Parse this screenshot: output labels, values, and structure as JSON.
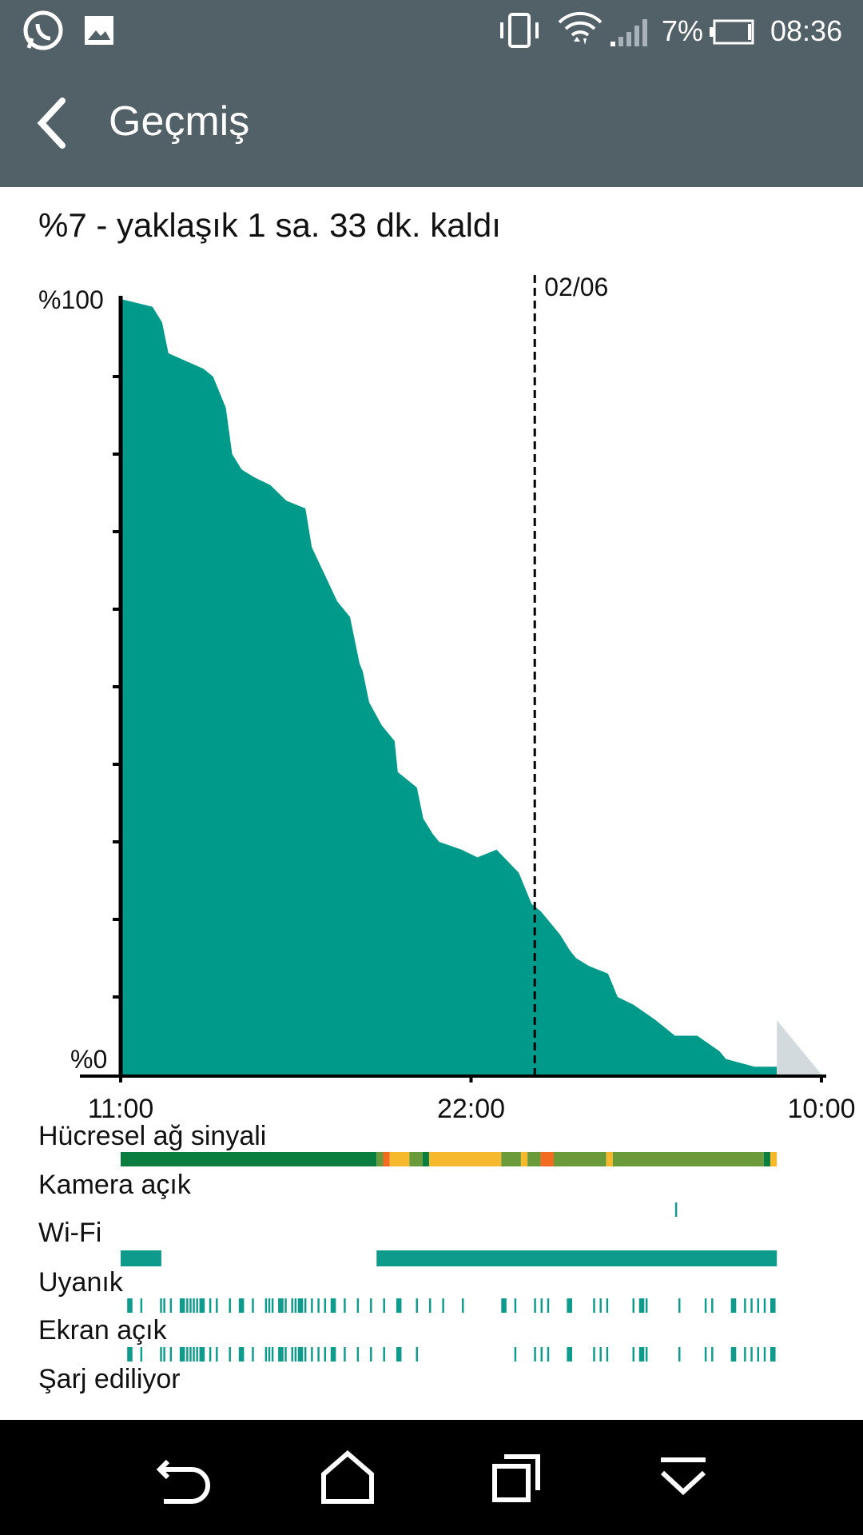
{
  "status_bar": {
    "battery_percent": "7%",
    "time": "08:36",
    "icons": [
      "whatsapp-icon",
      "gallery-icon",
      "vibrate-icon",
      "wifi-icon",
      "cell-signal-icon",
      "battery-icon"
    ]
  },
  "app_bar": {
    "title": "Geçmiş",
    "back_icon": "chevron-left-icon"
  },
  "summary": "%7 - yaklaşık 1 sa. 33 dk. kaldı",
  "chart_data": {
    "type": "area",
    "y_labels": [
      "%100",
      "%0"
    ],
    "x_labels": [
      "11:00",
      "22:00",
      "10:00"
    ],
    "date_marker": "02/06",
    "ylim": [
      0,
      100
    ],
    "xlim": [
      0,
      22
    ],
    "x_hours": [
      0,
      1.0,
      1.3,
      1.5,
      2.6,
      2.9,
      3.3,
      3.5,
      3.8,
      4.2,
      4.7,
      5.2,
      5.8,
      6.0,
      6.8,
      7.2,
      7.5,
      7.6,
      7.8,
      8.2,
      8.6,
      8.7,
      9.0,
      9.3,
      9.5,
      9.8,
      10.0,
      10.7,
      11.2,
      11.8,
      12.5,
      12.9,
      13.2,
      13.8,
      14.1,
      14.3,
      14.7,
      15.3,
      15.5,
      15.6,
      16.1,
      16.8,
      17.1,
      17.4,
      18.1,
      18.8,
      19.0,
      19.9,
      20.6,
      21.0,
      21.6,
      21.8,
      22.0
    ],
    "battery": [
      100,
      99,
      97,
      93,
      91,
      90,
      86,
      80,
      78,
      77,
      76,
      74,
      73,
      68,
      61,
      59,
      53,
      52,
      48,
      45,
      43,
      39,
      38,
      37,
      33,
      31,
      30,
      29,
      28,
      29,
      26,
      22,
      21,
      18,
      16,
      15,
      14,
      13,
      11,
      10,
      9,
      7,
      6,
      5,
      5,
      3,
      2,
      1,
      1,
      0,
      0,
      0,
      0
    ],
    "predicted": {
      "from_percent": 7,
      "to_percent": 0
    },
    "tracks": [
      {
        "label": "Hücresel ağ sinyali"
      },
      {
        "label": "Kamera açık"
      },
      {
        "label": "Wi-Fi"
      },
      {
        "label": "Uyanık"
      },
      {
        "label": "Ekran açık"
      },
      {
        "label": "Şarj ediliyor"
      }
    ],
    "colors": {
      "fill": "#009a8a",
      "predicted": "#d2dade",
      "signal_strong": "#0b7e3f",
      "signal_medium": "#6a9a3a",
      "signal_weak": "#f6b92d",
      "signal_bad": "#f36a21",
      "track": "#0f9b8b"
    }
  },
  "nav_bar": {
    "buttons": [
      "back-icon",
      "home-icon",
      "recents-icon",
      "dropdown-icon"
    ]
  }
}
